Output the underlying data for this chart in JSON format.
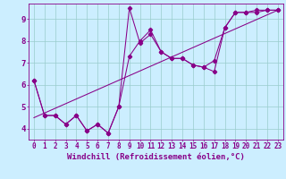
{
  "xlabel": "Windchill (Refroidissement éolien,°C)",
  "background_color": "#cceeff",
  "line_color": "#880088",
  "grid_color": "#99cccc",
  "xlim": [
    -0.5,
    23.5
  ],
  "ylim": [
    3.5,
    9.7
  ],
  "xticks": [
    0,
    1,
    2,
    3,
    4,
    5,
    6,
    7,
    8,
    9,
    10,
    11,
    12,
    13,
    14,
    15,
    16,
    17,
    18,
    19,
    20,
    21,
    22,
    23
  ],
  "yticks": [
    4,
    5,
    6,
    7,
    8,
    9
  ],
  "series": [
    {
      "x": [
        0,
        1,
        2,
        3,
        4,
        5,
        6,
        7,
        8,
        9,
        10,
        11,
        12,
        13,
        14,
        15,
        16,
        17,
        18,
        19,
        20,
        21,
        22,
        23
      ],
      "y": [
        6.2,
        4.6,
        4.6,
        4.2,
        4.6,
        3.9,
        4.2,
        3.8,
        5.0,
        7.3,
        8.0,
        8.5,
        7.5,
        7.2,
        7.2,
        6.9,
        6.8,
        6.6,
        8.6,
        9.3,
        9.3,
        9.3,
        9.4,
        9.4
      ]
    },
    {
      "x": [
        0,
        1,
        2,
        3,
        4,
        5,
        6,
        7,
        8,
        9,
        10,
        11,
        12,
        13,
        14,
        15,
        16,
        17,
        18,
        19,
        20,
        21,
        22,
        23
      ],
      "y": [
        6.2,
        4.6,
        4.6,
        4.2,
        4.6,
        3.9,
        4.2,
        3.8,
        5.0,
        9.5,
        7.9,
        8.3,
        7.5,
        7.2,
        7.2,
        6.9,
        6.8,
        7.1,
        8.6,
        9.3,
        9.3,
        9.4,
        9.4,
        9.4
      ]
    },
    {
      "x": [
        0,
        23
      ],
      "y": [
        4.5,
        9.4
      ]
    }
  ],
  "tick_fontsize": 5.5,
  "label_fontsize": 6.5
}
